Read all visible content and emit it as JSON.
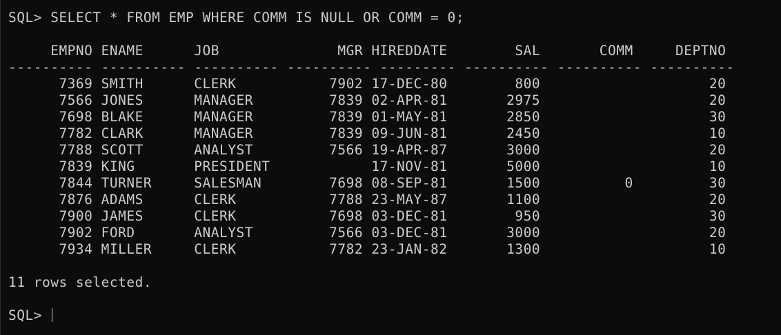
{
  "terminal": {
    "command_line": "SQL> SELECT * FROM EMP WHERE COMM IS NULL OR COMM = 0;",
    "header_line": "     EMPNO ENAME      JOB              MGR HIREDDATE        SAL       COMM     DEPTNO",
    "separator_line": "---------- ---------- ---------- ---------- --------- ---------- ---------- ----------",
    "rows": [
      "      7369 SMITH      CLERK           7902 17-DEC-80        800                    20",
      "      7566 JONES      MANAGER         7839 02-APR-81       2975                    20",
      "      7698 BLAKE      MANAGER         7839 01-MAY-81       2850                    30",
      "      7782 CLARK      MANAGER         7839 09-JUN-81       2450                    10",
      "      7788 SCOTT      ANALYST         7566 19-APR-87       3000                    20",
      "      7839 KING       PRESIDENT            17-NOV-81       5000                    10",
      "      7844 TURNER     SALESMAN        7698 08-SEP-81       1500          0         30",
      "      7876 ADAMS      CLERK           7788 23-MAY-87       1100                    20",
      "      7900 JAMES      CLERK           7698 03-DEC-81        950                    30",
      "      7902 FORD       ANALYST         7566 03-DEC-81       3000                    20",
      "      7934 MILLER     CLERK           7782 23-JAN-82       1300                    10"
    ],
    "status_line": "11 rows selected.",
    "prompt": "SQL> "
  }
}
